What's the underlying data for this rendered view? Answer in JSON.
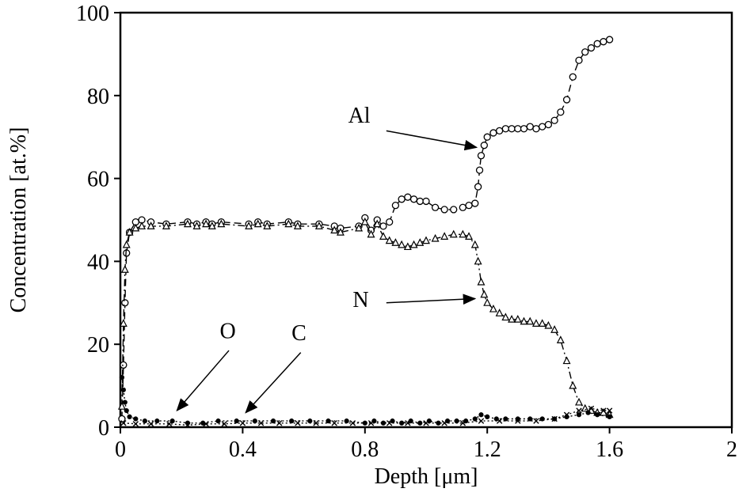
{
  "figure": {
    "background": "#ffffff"
  },
  "chart_data": {
    "type": "line",
    "title": "",
    "xlabel": "Depth [μm]",
    "ylabel": "Concentration [at.%]",
    "xlim": [
      0,
      2
    ],
    "ylim": [
      0,
      100
    ],
    "xticks": [
      0,
      0.4,
      0.8,
      1.2,
      1.6,
      2
    ],
    "yticks": [
      0,
      20,
      40,
      60,
      80,
      100
    ],
    "grid": false,
    "legend": "none (inline arrow annotations)",
    "colors": {
      "foreground": "#000000",
      "background": "#ffffff"
    },
    "series": [
      {
        "name": "Al",
        "marker": "open-circle",
        "line": "dashed",
        "points": [
          [
            0.005,
            2
          ],
          [
            0.01,
            15
          ],
          [
            0.015,
            30
          ],
          [
            0.02,
            42
          ],
          [
            0.03,
            47
          ],
          [
            0.05,
            49.5
          ],
          [
            0.07,
            50
          ],
          [
            0.1,
            49.5
          ],
          [
            0.15,
            49
          ],
          [
            0.22,
            49.5
          ],
          [
            0.25,
            49
          ],
          [
            0.28,
            49.5
          ],
          [
            0.3,
            49
          ],
          [
            0.33,
            49.5
          ],
          [
            0.42,
            49
          ],
          [
            0.45,
            49.5
          ],
          [
            0.48,
            49
          ],
          [
            0.55,
            49.5
          ],
          [
            0.58,
            49
          ],
          [
            0.65,
            49
          ],
          [
            0.7,
            48.5
          ],
          [
            0.72,
            48
          ],
          [
            0.78,
            48.5
          ],
          [
            0.8,
            50.5
          ],
          [
            0.82,
            47.5
          ],
          [
            0.84,
            50
          ],
          [
            0.86,
            48.5
          ],
          [
            0.88,
            49.5
          ],
          [
            0.9,
            53.5
          ],
          [
            0.92,
            55
          ],
          [
            0.94,
            55.5
          ],
          [
            0.96,
            55
          ],
          [
            0.98,
            54.5
          ],
          [
            1.0,
            54.5
          ],
          [
            1.03,
            53
          ],
          [
            1.06,
            52.5
          ],
          [
            1.09,
            52.5
          ],
          [
            1.12,
            53
          ],
          [
            1.14,
            53.5
          ],
          [
            1.16,
            54
          ],
          [
            1.17,
            58
          ],
          [
            1.175,
            62
          ],
          [
            1.18,
            65.5
          ],
          [
            1.19,
            68
          ],
          [
            1.2,
            70
          ],
          [
            1.22,
            71
          ],
          [
            1.24,
            71.5
          ],
          [
            1.26,
            72
          ],
          [
            1.28,
            72
          ],
          [
            1.3,
            72
          ],
          [
            1.32,
            72
          ],
          [
            1.34,
            72.5
          ],
          [
            1.36,
            72
          ],
          [
            1.38,
            72.5
          ],
          [
            1.4,
            73
          ],
          [
            1.42,
            74
          ],
          [
            1.44,
            76
          ],
          [
            1.46,
            79
          ],
          [
            1.48,
            84.5
          ],
          [
            1.5,
            88.5
          ],
          [
            1.52,
            90.5
          ],
          [
            1.54,
            91.5
          ],
          [
            1.56,
            92.5
          ],
          [
            1.58,
            93
          ],
          [
            1.6,
            93.5
          ]
        ]
      },
      {
        "name": "N",
        "marker": "open-triangle",
        "line": "dashdot",
        "points": [
          [
            0.005,
            5
          ],
          [
            0.01,
            25
          ],
          [
            0.015,
            38
          ],
          [
            0.02,
            44
          ],
          [
            0.03,
            47
          ],
          [
            0.05,
            48
          ],
          [
            0.07,
            48.5
          ],
          [
            0.1,
            48.5
          ],
          [
            0.15,
            48.5
          ],
          [
            0.22,
            49
          ],
          [
            0.25,
            48.5
          ],
          [
            0.28,
            49
          ],
          [
            0.3,
            48.5
          ],
          [
            0.33,
            49
          ],
          [
            0.42,
            48.5
          ],
          [
            0.45,
            49
          ],
          [
            0.48,
            48.5
          ],
          [
            0.55,
            49
          ],
          [
            0.58,
            48.5
          ],
          [
            0.65,
            48.5
          ],
          [
            0.7,
            47.5
          ],
          [
            0.72,
            47
          ],
          [
            0.78,
            48
          ],
          [
            0.8,
            49.5
          ],
          [
            0.82,
            46.5
          ],
          [
            0.84,
            49
          ],
          [
            0.86,
            46
          ],
          [
            0.88,
            45
          ],
          [
            0.9,
            44.5
          ],
          [
            0.92,
            44
          ],
          [
            0.94,
            43.5
          ],
          [
            0.96,
            44
          ],
          [
            0.98,
            44.5
          ],
          [
            1.0,
            45
          ],
          [
            1.03,
            45.5
          ],
          [
            1.06,
            46
          ],
          [
            1.09,
            46.5
          ],
          [
            1.12,
            46.5
          ],
          [
            1.14,
            46
          ],
          [
            1.16,
            44
          ],
          [
            1.17,
            40
          ],
          [
            1.18,
            35
          ],
          [
            1.19,
            32
          ],
          [
            1.2,
            30
          ],
          [
            1.22,
            28.5
          ],
          [
            1.24,
            27.5
          ],
          [
            1.26,
            26.5
          ],
          [
            1.28,
            26
          ],
          [
            1.3,
            26
          ],
          [
            1.32,
            25.5
          ],
          [
            1.34,
            25.5
          ],
          [
            1.36,
            25
          ],
          [
            1.38,
            25
          ],
          [
            1.4,
            24.5
          ],
          [
            1.42,
            23.5
          ],
          [
            1.44,
            21
          ],
          [
            1.46,
            16
          ],
          [
            1.48,
            10
          ],
          [
            1.5,
            6
          ],
          [
            1.52,
            4.5
          ],
          [
            1.54,
            4
          ],
          [
            1.56,
            3.5
          ],
          [
            1.58,
            3.5
          ],
          [
            1.6,
            3
          ]
        ]
      },
      {
        "name": "O",
        "marker": "filled-circle",
        "line": "dotted",
        "points": [
          [
            0.005,
            12
          ],
          [
            0.01,
            9
          ],
          [
            0.015,
            6
          ],
          [
            0.02,
            4
          ],
          [
            0.03,
            2.5
          ],
          [
            0.05,
            2
          ],
          [
            0.08,
            1.5
          ],
          [
            0.12,
            1.5
          ],
          [
            0.17,
            1.5
          ],
          [
            0.22,
            1
          ],
          [
            0.27,
            1
          ],
          [
            0.32,
            1.5
          ],
          [
            0.38,
            1.5
          ],
          [
            0.44,
            1.5
          ],
          [
            0.5,
            1.5
          ],
          [
            0.56,
            1.5
          ],
          [
            0.62,
            1.5
          ],
          [
            0.68,
            1.5
          ],
          [
            0.74,
            1.5
          ],
          [
            0.8,
            1
          ],
          [
            0.83,
            1.5
          ],
          [
            0.86,
            1
          ],
          [
            0.89,
            1.5
          ],
          [
            0.92,
            1
          ],
          [
            0.95,
            1.5
          ],
          [
            0.98,
            1
          ],
          [
            1.01,
            1.5
          ],
          [
            1.04,
            1
          ],
          [
            1.07,
            1.5
          ],
          [
            1.1,
            1.5
          ],
          [
            1.13,
            1.5
          ],
          [
            1.16,
            2
          ],
          [
            1.18,
            3
          ],
          [
            1.2,
            2.5
          ],
          [
            1.23,
            2
          ],
          [
            1.26,
            2
          ],
          [
            1.3,
            2
          ],
          [
            1.34,
            2
          ],
          [
            1.38,
            2
          ],
          [
            1.42,
            2
          ],
          [
            1.46,
            2.5
          ],
          [
            1.5,
            3
          ],
          [
            1.53,
            3.5
          ],
          [
            1.56,
            3
          ],
          [
            1.6,
            2.5
          ]
        ]
      },
      {
        "name": "C",
        "marker": "cross",
        "line": "dotted",
        "points": [
          [
            0.01,
            1
          ],
          [
            0.05,
            0.8
          ],
          [
            0.1,
            0.8
          ],
          [
            0.16,
            0.8
          ],
          [
            0.22,
            0.5
          ],
          [
            0.28,
            0.8
          ],
          [
            0.34,
            0.8
          ],
          [
            0.4,
            1
          ],
          [
            0.46,
            1
          ],
          [
            0.52,
            1
          ],
          [
            0.58,
            1
          ],
          [
            0.64,
            1
          ],
          [
            0.7,
            1
          ],
          [
            0.76,
            1
          ],
          [
            0.82,
            1
          ],
          [
            0.88,
            1
          ],
          [
            0.94,
            1
          ],
          [
            1.0,
            1
          ],
          [
            1.06,
            1
          ],
          [
            1.12,
            1
          ],
          [
            1.18,
            1.5
          ],
          [
            1.24,
            1.5
          ],
          [
            1.3,
            1.5
          ],
          [
            1.36,
            1.5
          ],
          [
            1.42,
            2
          ],
          [
            1.46,
            3
          ],
          [
            1.5,
            4
          ],
          [
            1.54,
            4.5
          ],
          [
            1.58,
            4
          ],
          [
            1.6,
            4
          ]
        ]
      }
    ],
    "annotations": [
      {
        "label": "Al",
        "text": [
          0.745,
          73.5
        ],
        "tail": [
          0.87,
          71.5
        ],
        "tip": [
          1.165,
          67.5
        ]
      },
      {
        "label": "N",
        "text": [
          0.76,
          29
        ],
        "tail": [
          0.87,
          30
        ],
        "tip": [
          1.16,
          31
        ]
      },
      {
        "label": "O",
        "text": [
          0.325,
          21.5
        ],
        "tail": [
          0.355,
          18.5
        ],
        "tip": [
          0.185,
          4
        ]
      },
      {
        "label": "C",
        "text": [
          0.56,
          21
        ],
        "tail": [
          0.59,
          18
        ],
        "tip": [
          0.41,
          3.5
        ]
      }
    ]
  }
}
